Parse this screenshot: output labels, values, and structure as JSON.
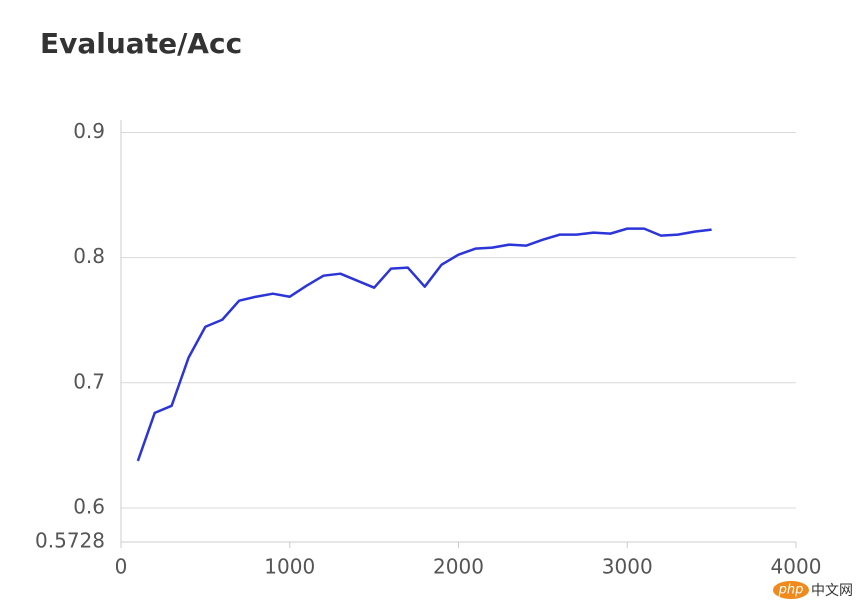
{
  "chart_data": {
    "type": "line",
    "title": "Evaluate/Acc",
    "x": [
      100,
      200,
      300,
      400,
      500,
      600,
      700,
      800,
      900,
      1000,
      1100,
      1200,
      1300,
      1400,
      1500,
      1600,
      1700,
      1800,
      1900,
      2000,
      2100,
      2200,
      2300,
      2400,
      2500,
      2600,
      2700,
      2800,
      2900,
      3000,
      3100,
      3200,
      3300,
      3400,
      3500
    ],
    "series": [
      {
        "color": "#2b35d8",
        "values": [
          0.6376,
          0.676,
          0.6816,
          0.72,
          0.7448,
          0.7504,
          0.7656,
          0.7688,
          0.7712,
          0.7688,
          0.7776,
          0.7856,
          0.7872,
          0.7816,
          0.776,
          0.7912,
          0.792,
          0.7768,
          0.7944,
          0.8024,
          0.8072,
          0.808,
          0.8104,
          0.8096,
          0.8144,
          0.8184,
          0.8184,
          0.82,
          0.8192,
          0.8232,
          0.8232,
          0.8176,
          0.8184,
          0.8208,
          0.8224
        ]
      }
    ],
    "xlim": [
      0,
      4000
    ],
    "xticks": [
      0,
      1000,
      2000,
      3000,
      4000
    ],
    "ylim": [
      0.5728,
      0.91
    ],
    "yticks": [
      0.5728,
      0.6,
      0.7,
      0.8,
      0.9
    ],
    "grid": true
  },
  "watermark": {
    "logo": "php",
    "text": "中文网"
  }
}
